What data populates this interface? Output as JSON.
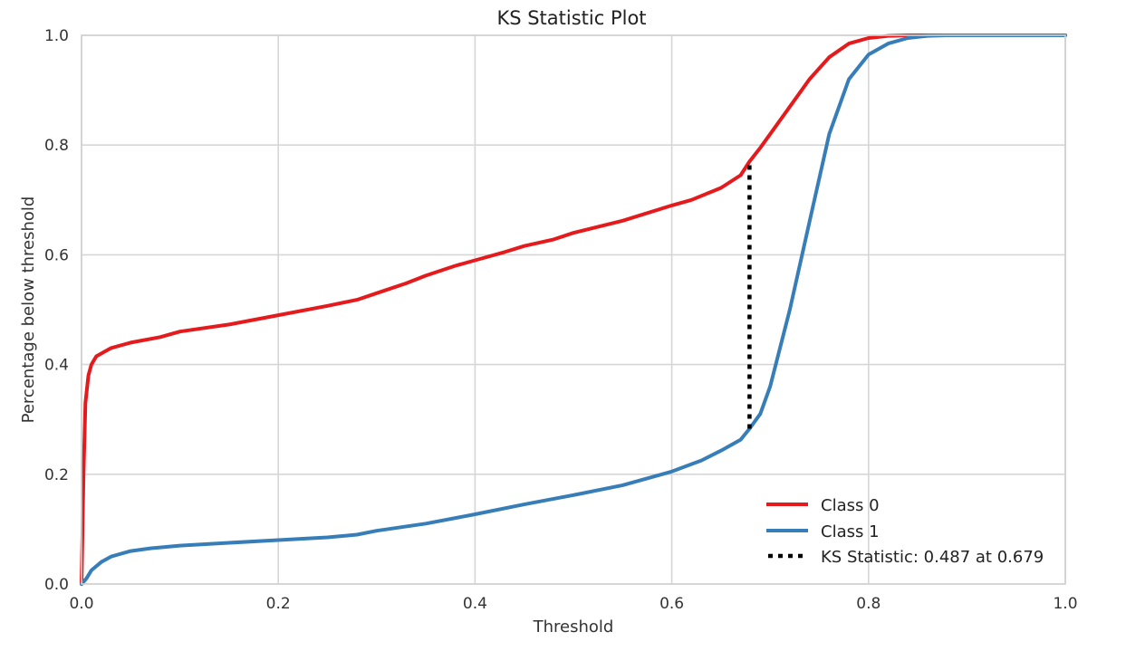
{
  "chart_data": {
    "type": "line",
    "title": "KS Statistic Plot",
    "xlabel": "Threshold",
    "ylabel": "Percentage below threshold",
    "xlim": [
      0.0,
      1.0
    ],
    "ylim": [
      0.0,
      1.0
    ],
    "xticks": [
      "0.0",
      "0.2",
      "0.4",
      "0.6",
      "0.8",
      "1.0"
    ],
    "yticks": [
      "0.0",
      "0.2",
      "0.4",
      "0.6",
      "0.8",
      "1.0"
    ],
    "grid": true,
    "legend_position": "bottom-right",
    "series": [
      {
        "name": "Class 0",
        "color": "#e41a1c",
        "x": [
          0.0,
          0.002,
          0.004,
          0.007,
          0.01,
          0.015,
          0.02,
          0.03,
          0.05,
          0.08,
          0.1,
          0.15,
          0.2,
          0.25,
          0.28,
          0.3,
          0.33,
          0.35,
          0.38,
          0.4,
          0.43,
          0.45,
          0.48,
          0.5,
          0.55,
          0.6,
          0.62,
          0.65,
          0.67,
          0.679,
          0.69,
          0.7,
          0.72,
          0.74,
          0.76,
          0.78,
          0.8,
          0.82,
          0.84,
          0.86,
          0.9,
          1.0
        ],
        "y": [
          0.0,
          0.2,
          0.33,
          0.38,
          0.4,
          0.415,
          0.42,
          0.43,
          0.44,
          0.45,
          0.46,
          0.473,
          0.49,
          0.507,
          0.518,
          0.53,
          0.548,
          0.562,
          0.58,
          0.59,
          0.605,
          0.616,
          0.628,
          0.64,
          0.662,
          0.69,
          0.7,
          0.722,
          0.745,
          0.77,
          0.795,
          0.82,
          0.87,
          0.92,
          0.96,
          0.985,
          0.995,
          0.999,
          1.0,
          1.0,
          1.0,
          1.0
        ]
      },
      {
        "name": "Class 1",
        "color": "#377eb8",
        "x": [
          0.0,
          0.005,
          0.01,
          0.02,
          0.03,
          0.05,
          0.07,
          0.1,
          0.15,
          0.2,
          0.25,
          0.28,
          0.3,
          0.35,
          0.4,
          0.45,
          0.5,
          0.55,
          0.6,
          0.63,
          0.65,
          0.67,
          0.679,
          0.69,
          0.7,
          0.72,
          0.74,
          0.76,
          0.78,
          0.8,
          0.82,
          0.84,
          0.86,
          0.88,
          0.9,
          1.0
        ],
        "y": [
          0.0,
          0.01,
          0.025,
          0.04,
          0.05,
          0.06,
          0.065,
          0.07,
          0.075,
          0.08,
          0.085,
          0.09,
          0.097,
          0.11,
          0.127,
          0.145,
          0.162,
          0.18,
          0.205,
          0.225,
          0.243,
          0.263,
          0.283,
          0.31,
          0.36,
          0.5,
          0.66,
          0.82,
          0.92,
          0.965,
          0.985,
          0.995,
          0.999,
          1.0,
          1.0,
          1.0
        ]
      }
    ],
    "ks_line": {
      "name": "KS Statistic: 0.487 at 0.679",
      "color": "#000000",
      "x": 0.679,
      "y_bottom": 0.283,
      "y_top": 0.77
    }
  }
}
